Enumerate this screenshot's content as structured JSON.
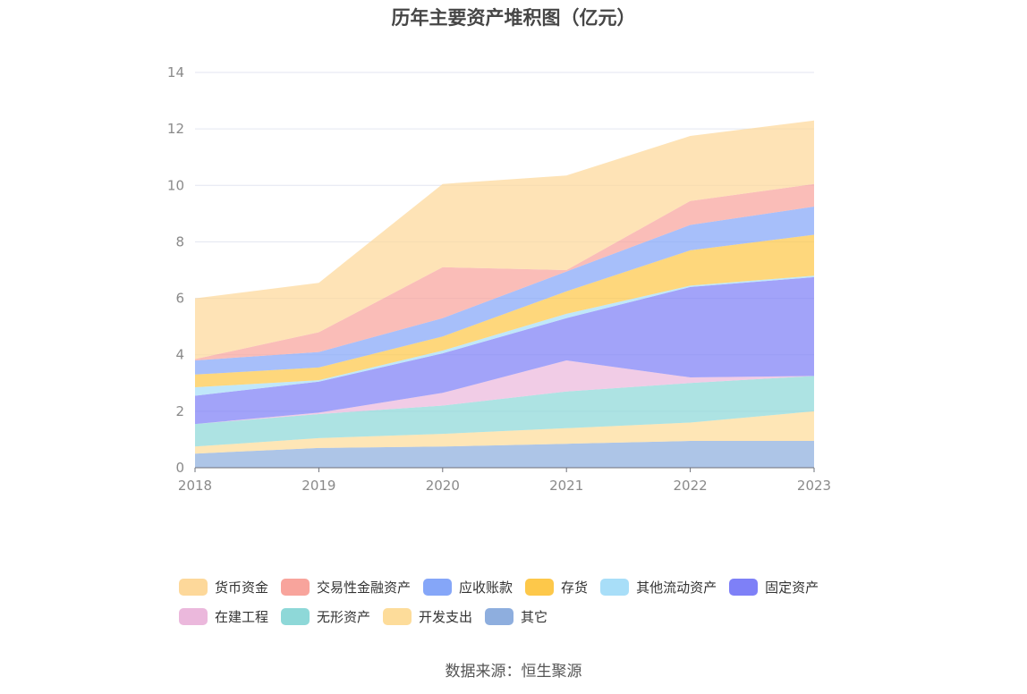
{
  "chart_data": {
    "type": "area",
    "stacked": true,
    "title": "历年主要资产堆积图（亿元）",
    "x": [
      "2018",
      "2019",
      "2020",
      "2021",
      "2022",
      "2023"
    ],
    "ylim": [
      0,
      14
    ],
    "yticks": [
      0,
      2,
      4,
      6,
      8,
      10,
      12,
      14
    ],
    "grid": true,
    "legend_position": "bottom",
    "series": [
      {
        "name": "其它",
        "color": "#8eaede",
        "values": [
          0.5,
          0.7,
          0.75,
          0.85,
          0.95,
          0.95
        ]
      },
      {
        "name": "开发支出",
        "color": "#fddc9a",
        "values": [
          0.25,
          0.35,
          0.45,
          0.55,
          0.65,
          1.05
        ]
      },
      {
        "name": "无形资产",
        "color": "#8ed8d8",
        "values": [
          0.8,
          0.85,
          1.0,
          1.3,
          1.4,
          1.25
        ]
      },
      {
        "name": "在建工程",
        "color": "#ebb8dc",
        "values": [
          0.0,
          0.05,
          0.45,
          1.1,
          0.2,
          0.0
        ]
      },
      {
        "name": "固定资产",
        "color": "#7e80f7",
        "values": [
          1.0,
          1.1,
          1.4,
          1.5,
          3.2,
          3.5
        ]
      },
      {
        "name": "其他流动资产",
        "color": "#a8def8",
        "values": [
          0.3,
          0.05,
          0.1,
          0.15,
          0.05,
          0.05
        ]
      },
      {
        "name": "存货",
        "color": "#fdc84a",
        "values": [
          0.45,
          0.45,
          0.5,
          0.8,
          1.25,
          1.45
        ]
      },
      {
        "name": "应收账款",
        "color": "#85a6f8",
        "values": [
          0.5,
          0.55,
          0.65,
          0.7,
          0.9,
          1.0
        ]
      },
      {
        "name": "交易性金融资产",
        "color": "#f8a49c",
        "values": [
          0.05,
          0.7,
          1.8,
          0.05,
          0.85,
          0.8
        ]
      },
      {
        "name": "货币资金",
        "color": "#fdd89a",
        "values": [
          2.15,
          1.75,
          2.95,
          3.35,
          2.3,
          2.25
        ]
      }
    ]
  },
  "legend": [
    [
      "货币资金",
      "交易性金融资产",
      "应收账款",
      "存货",
      "其他流动资产",
      "固定资产"
    ],
    [
      "在建工程",
      "无形资产",
      "开发支出",
      "其它"
    ]
  ],
  "source": "数据来源：恒生聚源"
}
